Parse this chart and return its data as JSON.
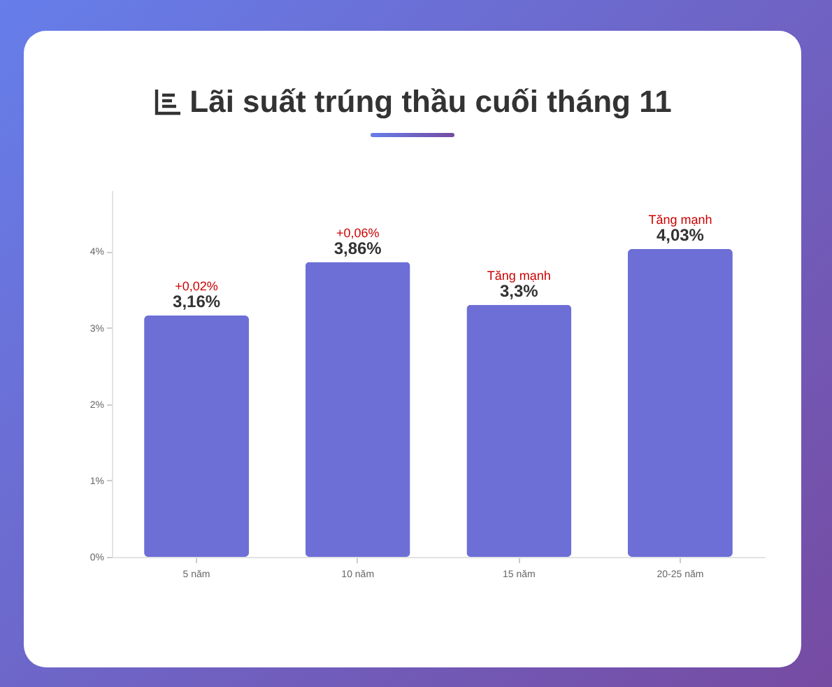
{
  "chart_data": {
    "type": "bar",
    "title": "Lãi suất trúng thầu cuối tháng 11",
    "categories": [
      "5 năm",
      "10 năm",
      "15 năm",
      "20-25 năm"
    ],
    "values": [
      3.16,
      3.86,
      3.3,
      4.03
    ],
    "value_labels": [
      "3,16%",
      "3,86%",
      "3,3%",
      "4,03%"
    ],
    "color": "#6d6fd6",
    "ylim": [
      0,
      4.8
    ],
    "yticks": [
      {
        "value": 0,
        "label": "0%"
      },
      {
        "value": 1,
        "label": "1%"
      },
      {
        "value": 2,
        "label": "2%"
      },
      {
        "value": 3,
        "label": "3%"
      },
      {
        "value": 4,
        "label": "4%"
      }
    ],
    "annotations": [
      {
        "text": "+0,02%",
        "x": "5 năm",
        "y": 3.16
      },
      {
        "text": "+0,06%",
        "x": "10 năm",
        "y": 3.86
      },
      {
        "text": "Tăng mạnh",
        "x": "15 năm",
        "y": 3.3
      },
      {
        "text": "Tăng mạnh",
        "x": "20-25 năm",
        "y": 4.03
      }
    ],
    "grid": false
  }
}
